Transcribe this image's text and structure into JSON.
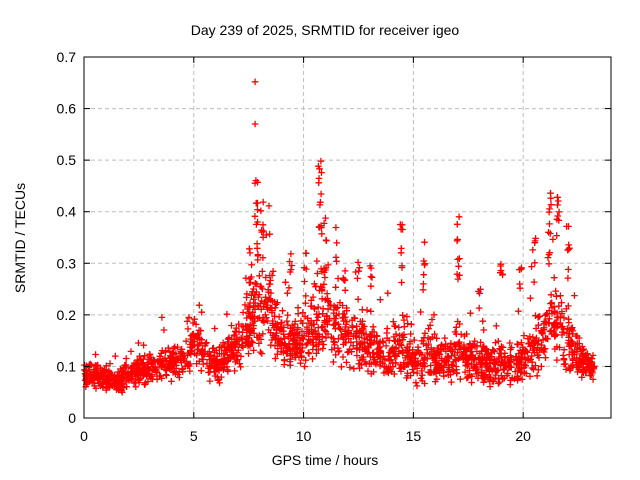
{
  "page": {
    "background": "#ffffff"
  },
  "chart_data": {
    "type": "scatter",
    "title": "Day 239 of 2025, SRMTID for receiver igeo",
    "xlabel": "GPS time / hours",
    "ylabel": "SRMTID / TECUs",
    "xlim": [
      0,
      24
    ],
    "ylim": [
      0,
      0.7
    ],
    "xticks": [
      0,
      5,
      10,
      15,
      20
    ],
    "xtick_labels": [
      "0",
      "5",
      "10",
      "15",
      "20"
    ],
    "yticks": [
      0,
      0.1,
      0.2,
      0.3,
      0.4,
      0.5,
      0.6,
      0.7
    ],
    "ytick_labels": [
      "0",
      "0.1",
      "0.2",
      "0.3",
      "0.4",
      "0.5",
      "0.6",
      "0.7"
    ],
    "grid": true,
    "legend": "none",
    "marker": {
      "shape": "plus",
      "color": "#ff0000",
      "size": 6.6,
      "stroke_width": 1.3
    },
    "border_color": "#000000",
    "grid_color": "#bdbdbd",
    "text_color": "#000000",
    "data_time_range": [
      0.0,
      23.25
    ],
    "n_baseline_points": 2000,
    "seed": 239,
    "baseline_profile": [
      [
        0.0,
        0.085,
        0.03
      ],
      [
        0.8,
        0.08,
        0.03
      ],
      [
        1.7,
        0.072,
        0.028
      ],
      [
        2.5,
        0.09,
        0.035
      ],
      [
        3.5,
        0.1,
        0.038
      ],
      [
        4.4,
        0.112,
        0.04
      ],
      [
        5.2,
        0.145,
        0.048
      ],
      [
        5.8,
        0.1,
        0.038
      ],
      [
        6.4,
        0.11,
        0.045
      ],
      [
        7.1,
        0.15,
        0.06
      ],
      [
        7.9,
        0.215,
        0.1
      ],
      [
        8.5,
        0.19,
        0.085
      ],
      [
        9.1,
        0.145,
        0.055
      ],
      [
        9.8,
        0.15,
        0.065
      ],
      [
        10.4,
        0.17,
        0.075
      ],
      [
        10.8,
        0.215,
        0.105
      ],
      [
        11.3,
        0.175,
        0.08
      ],
      [
        12.0,
        0.155,
        0.075
      ],
      [
        12.7,
        0.14,
        0.065
      ],
      [
        13.4,
        0.125,
        0.06
      ],
      [
        14.0,
        0.115,
        0.055
      ],
      [
        14.5,
        0.145,
        0.08
      ],
      [
        15.1,
        0.1,
        0.048
      ],
      [
        15.6,
        0.125,
        0.07
      ],
      [
        16.2,
        0.108,
        0.048
      ],
      [
        17.0,
        0.125,
        0.07
      ],
      [
        17.9,
        0.105,
        0.048
      ],
      [
        18.7,
        0.105,
        0.05
      ],
      [
        19.4,
        0.105,
        0.05
      ],
      [
        20.1,
        0.115,
        0.055
      ],
      [
        20.7,
        0.145,
        0.07
      ],
      [
        21.3,
        0.195,
        0.095
      ],
      [
        21.9,
        0.165,
        0.09
      ],
      [
        22.6,
        0.115,
        0.04
      ],
      [
        23.25,
        0.095,
        0.03
      ]
    ],
    "spikes": [
      [
        7.6,
        0.24,
        0.37,
        8
      ],
      [
        7.85,
        0.28,
        0.465,
        14
      ],
      [
        8.1,
        0.28,
        0.42,
        8
      ],
      [
        8.5,
        0.24,
        0.42,
        7
      ],
      [
        9.4,
        0.24,
        0.335,
        6
      ],
      [
        10.05,
        0.22,
        0.335,
        7
      ],
      [
        10.75,
        0.3,
        0.51,
        13
      ],
      [
        11.0,
        0.27,
        0.4,
        8
      ],
      [
        11.5,
        0.24,
        0.37,
        6
      ],
      [
        11.85,
        0.22,
        0.335,
        6
      ],
      [
        12.5,
        0.22,
        0.31,
        5
      ],
      [
        13.05,
        0.2,
        0.3,
        6
      ],
      [
        14.45,
        0.24,
        0.385,
        9
      ],
      [
        15.5,
        0.24,
        0.37,
        7
      ],
      [
        17.05,
        0.25,
        0.425,
        10
      ],
      [
        18.0,
        0.21,
        0.27,
        4
      ],
      [
        19.0,
        0.21,
        0.3,
        6
      ],
      [
        19.85,
        0.24,
        0.31,
        5
      ],
      [
        20.5,
        0.24,
        0.35,
        6
      ],
      [
        21.2,
        0.28,
        0.45,
        11
      ],
      [
        21.6,
        0.27,
        0.435,
        9
      ],
      [
        22.05,
        0.28,
        0.4,
        7
      ]
    ],
    "outliers": [
      [
        7.79,
        0.652
      ],
      [
        7.79,
        0.57
      ]
    ]
  }
}
